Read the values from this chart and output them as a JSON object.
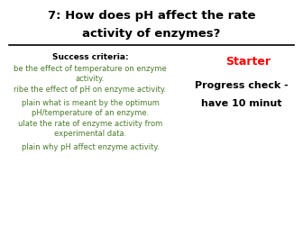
{
  "background_color": "#ffffff",
  "title_line1": "7: How does pH affect the rate",
  "title_line2": "activity of enzymes?",
  "success_criteria_header": "Success criteria:",
  "success_criteria_items": [
    "be the effect of temperature on enzyme\nactivity.",
    "ribe the effect of pH on enzyme activity.",
    "plain what is meant by the optimum\npH/temperature of an enzyme.",
    "ulate the rate of enzyme activity from\nexperimental data.",
    "plain why pH affect enzyme activity."
  ],
  "starter_label": "Starter",
  "starter_color": "#ff0000",
  "progress_line1": "Progress check -",
  "progress_line2": "have 10 minut",
  "title_color": "#000000",
  "criteria_header_color": "#000000",
  "criteria_text_color": "#4a7a2a",
  "progress_color": "#000000",
  "title_fontsize": 9.5,
  "body_fontsize": 6.0,
  "header_fontsize": 6.5,
  "starter_fontsize": 9.0,
  "progress_fontsize": 8.0
}
